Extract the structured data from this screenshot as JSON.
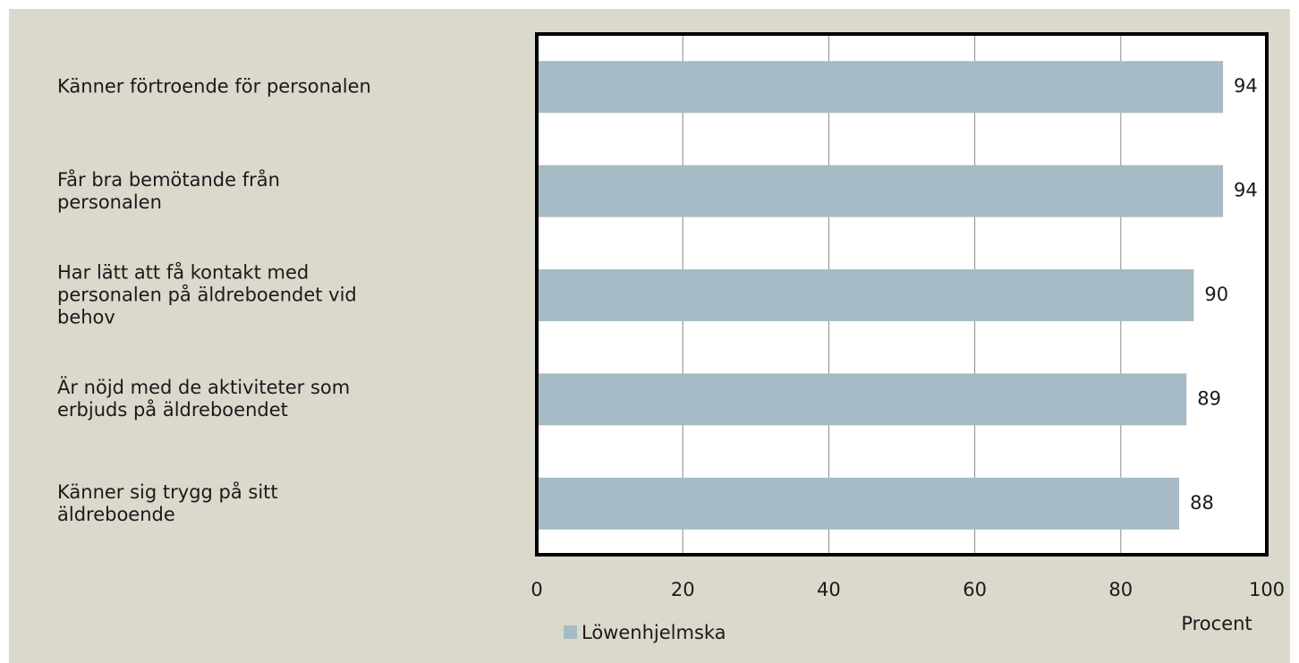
{
  "chart_data": {
    "type": "barh",
    "categories": [
      "Känner förtroende för personalen",
      "Får bra bemötande från\npersonalen",
      "Har lätt att få kontakt med\npersonalen på äldreboendet vid\nbehov",
      "Är nöjd med de aktiviteter som\nerbjuds på äldreboendet",
      "Känner sig trygg på sitt\näldreboende"
    ],
    "series": [
      {
        "name": "Löwenhjelmska",
        "color": "#a7bbc6",
        "values": [
          94,
          94,
          90,
          89,
          88
        ]
      }
    ],
    "xlabel": "Procent",
    "xlim": [
      0,
      100
    ],
    "xticks": [
      0,
      20,
      40,
      60,
      80,
      100
    ],
    "grid": true,
    "legend": "bottom"
  }
}
